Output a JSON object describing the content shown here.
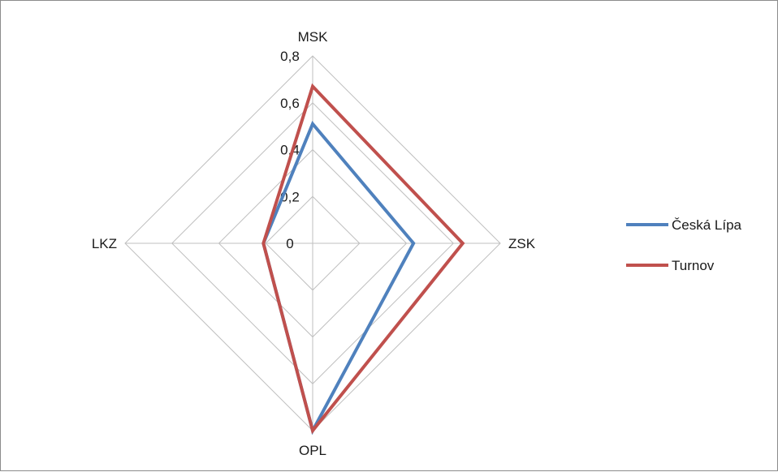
{
  "chart_data": {
    "type": "radar",
    "title": "",
    "categories": [
      "MSK",
      "ZSK",
      "OPL",
      "LKZ"
    ],
    "rlim": [
      0,
      0.8
    ],
    "ticks": [
      "0",
      "0,2",
      "0,4",
      "0,6",
      "0,8"
    ],
    "tick_values": [
      0,
      0.2,
      0.4,
      0.6,
      0.8
    ],
    "grid": true,
    "legend_position": "right",
    "series": [
      {
        "name": "Česká Lípa",
        "color": "#4f81bd",
        "values": [
          0.51,
          0.43,
          0.8,
          0.21
        ]
      },
      {
        "name": "Turnov",
        "color": "#c0504d",
        "values": [
          0.67,
          0.64,
          0.8,
          0.21
        ]
      }
    ]
  }
}
